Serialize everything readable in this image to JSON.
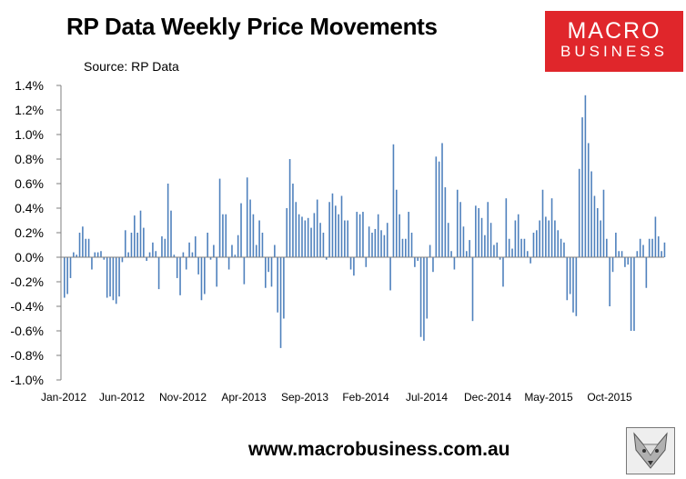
{
  "title": "RP Data Weekly Price Movements",
  "source": "Source: RP Data",
  "logo": {
    "line1": "MACRO",
    "line2": "BUSINESS",
    "icon": "macrobusiness-logo"
  },
  "footer": {
    "url": "www.macrobusiness.com.au",
    "icon": "fox-mascot-icon"
  },
  "colors": {
    "bars": "#4f81bd",
    "logo_bg": "#e0262b"
  },
  "chart_data": {
    "type": "bar",
    "title": "RP Data Weekly Price Movements",
    "xlabel": "",
    "ylabel": "",
    "ylim": [
      -1.0,
      1.4
    ],
    "y_ticks": [
      "1.4%",
      "1.2%",
      "1.0%",
      "0.8%",
      "0.6%",
      "0.4%",
      "0.2%",
      "0.0%",
      "-0.2%",
      "-0.4%",
      "-0.6%",
      "-0.8%",
      "-1.0%"
    ],
    "y_tick_values": [
      1.4,
      1.2,
      1.0,
      0.8,
      0.6,
      0.4,
      0.2,
      0.0,
      -0.2,
      -0.4,
      -0.6,
      -0.8,
      -1.0
    ],
    "x_ticks": [
      "Jan-2012",
      "Jun-2012",
      "Nov-2012",
      "Apr-2013",
      "Sep-2013",
      "Feb-2014",
      "Jul-2014",
      "Dec-2014",
      "May-2015",
      "Oct-2015"
    ],
    "grid": false,
    "legend": "none",
    "series": [
      {
        "values": [
          -0.33,
          -0.3,
          -0.17,
          0.04,
          0.02,
          0.2,
          0.25,
          0.15,
          0.15,
          -0.1,
          0.04,
          0.04,
          0.05,
          -0.02,
          -0.33,
          -0.32,
          -0.35,
          -0.38,
          -0.32,
          -0.04,
          0.22,
          0.04,
          0.2,
          0.34,
          0.2,
          0.38,
          0.24,
          -0.03,
          0.04,
          0.12,
          0.05,
          -0.26,
          0.17,
          0.15,
          0.6,
          0.38,
          0.02,
          -0.17,
          -0.31,
          0.04,
          -0.1,
          0.12,
          0.04,
          0.17,
          -0.14,
          -0.35,
          -0.3,
          0.2,
          -0.02,
          0.1,
          -0.24,
          0.64,
          0.35,
          0.35,
          -0.1,
          0.1,
          0.02,
          0.18,
          0.44,
          -0.22,
          0.65,
          0.47,
          0.35,
          0.1,
          0.3,
          0.2,
          -0.25,
          -0.12,
          -0.24,
          0.1,
          -0.45,
          -0.74,
          -0.5,
          0.4,
          0.8,
          0.6,
          0.45,
          0.35,
          0.33,
          0.3,
          0.32,
          0.24,
          0.36,
          0.47,
          0.28,
          0.2,
          -0.02,
          0.45,
          0.52,
          0.42,
          0.35,
          0.5,
          0.3,
          0.3,
          -0.1,
          -0.15,
          0.37,
          0.35,
          0.37,
          -0.08,
          0.25,
          0.2,
          0.23,
          0.35,
          0.22,
          0.18,
          0.28,
          -0.27,
          0.92,
          0.55,
          0.35,
          0.15,
          0.15,
          0.37,
          0.2,
          -0.08,
          -0.03,
          -0.65,
          -0.68,
          -0.5,
          0.1,
          -0.12,
          0.82,
          0.78,
          0.93,
          0.57,
          0.28,
          0.05,
          -0.1,
          0.55,
          0.45,
          0.25,
          0.05,
          0.14,
          -0.52,
          0.42,
          0.4,
          0.32,
          0.18,
          0.45,
          0.28,
          0.1,
          0.12,
          -0.02,
          -0.24,
          0.48,
          0.15,
          0.07,
          0.3,
          0.35,
          0.15,
          0.15,
          0.05,
          -0.05,
          0.2,
          0.22,
          0.3,
          0.55,
          0.33,
          0.3,
          0.48,
          0.3,
          0.22,
          0.15,
          0.12,
          -0.35,
          -0.3,
          -0.45,
          -0.48,
          0.72,
          1.14,
          1.32,
          0.93,
          0.7,
          0.5,
          0.4,
          0.3,
          0.55,
          0.15,
          -0.4,
          -0.12,
          0.2,
          0.05,
          0.05,
          -0.08,
          -0.06,
          -0.6,
          -0.6,
          0.05,
          0.15,
          0.1,
          -0.25,
          0.15,
          0.15,
          0.33,
          0.17,
          0.05,
          0.12
        ]
      }
    ]
  }
}
